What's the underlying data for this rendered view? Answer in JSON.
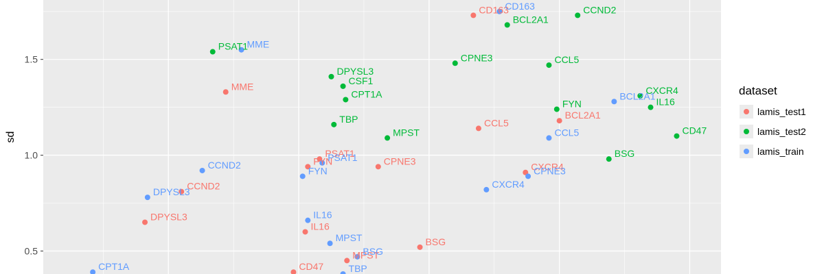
{
  "chart_data": {
    "type": "scatter",
    "ylabel": "sd",
    "xlabel": "",
    "ylim": [
      0.38,
      1.81
    ],
    "yticks": [
      0.5,
      1.0,
      1.5
    ],
    "ytick_labels": [
      "0.5",
      "1.0",
      "1.5"
    ],
    "grid": true,
    "legend": {
      "title": "dataset",
      "position": "right"
    },
    "series": [
      {
        "name": "lamis_test1",
        "color": "#F8766D",
        "points": [
          {
            "label": "CD163",
            "x": 0.67,
            "y": 1.73
          },
          {
            "label": "MME",
            "x": -0.28,
            "y": 1.33
          },
          {
            "label": "CCL5",
            "x": 0.69,
            "y": 1.14
          },
          {
            "label": "BCL2A1",
            "x": 1.0,
            "y": 1.18
          },
          {
            "label": "PSAT1",
            "x": 0.08,
            "y": 0.98
          },
          {
            "label": "FYN",
            "x": 0.035,
            "y": 0.94
          },
          {
            "label": "CPNE3",
            "x": 0.305,
            "y": 0.94
          },
          {
            "label": "CXCR4",
            "x": 0.87,
            "y": 0.91
          },
          {
            "label": "CCND2",
            "x": -0.45,
            "y": 0.81
          },
          {
            "label": "DPYSL3",
            "x": -0.59,
            "y": 0.65
          },
          {
            "label": "IL16",
            "x": 0.025,
            "y": 0.6
          },
          {
            "label": "BSG",
            "x": 0.465,
            "y": 0.52
          },
          {
            "label": "MPST",
            "x": 0.185,
            "y": 0.45
          },
          {
            "label": "CD47",
            "x": -0.02,
            "y": 0.39
          }
        ]
      },
      {
        "name": "lamis_test2",
        "color": "#00BA38",
        "points": [
          {
            "label": "CCND2",
            "x": 1.07,
            "y": 1.73
          },
          {
            "label": "BCL2A1",
            "x": 0.8,
            "y": 1.68
          },
          {
            "label": "PSAT1",
            "x": -0.33,
            "y": 1.54
          },
          {
            "label": "CPNE3",
            "x": 0.6,
            "y": 1.48
          },
          {
            "label": "CCL5",
            "x": 0.96,
            "y": 1.47
          },
          {
            "label": "DPYSL3",
            "x": 0.125,
            "y": 1.41
          },
          {
            "label": "CSF1",
            "x": 0.17,
            "y": 1.36
          },
          {
            "label": "CPT1A",
            "x": 0.18,
            "y": 1.29
          },
          {
            "label": "CXCR4",
            "x": 1.31,
            "y": 1.31
          },
          {
            "label": "IL16",
            "x": 1.35,
            "y": 1.25
          },
          {
            "label": "FYN",
            "x": 0.99,
            "y": 1.24
          },
          {
            "label": "TBP",
            "x": 0.135,
            "y": 1.16
          },
          {
            "label": "MPST",
            "x": 0.34,
            "y": 1.09
          },
          {
            "label": "CD47",
            "x": 1.45,
            "y": 1.1
          },
          {
            "label": "BSG",
            "x": 1.19,
            "y": 0.98
          }
        ]
      },
      {
        "name": "lamis_train",
        "color": "#619CFF",
        "points": [
          {
            "label": "CD163",
            "x": 0.77,
            "y": 1.75
          },
          {
            "label": "MME",
            "x": -0.22,
            "y": 1.55
          },
          {
            "label": "BCL2A1",
            "x": 1.21,
            "y": 1.28
          },
          {
            "label": "CCL5",
            "x": 0.96,
            "y": 1.09
          },
          {
            "label": "CCND2",
            "x": -0.37,
            "y": 0.92
          },
          {
            "label": "PSAT1",
            "x": 0.09,
            "y": 0.96
          },
          {
            "label": "FYN",
            "x": 0.015,
            "y": 0.89
          },
          {
            "label": "CPNE3",
            "x": 0.88,
            "y": 0.89
          },
          {
            "label": "CXCR4",
            "x": 0.72,
            "y": 0.82
          },
          {
            "label": "DPYSL3",
            "x": -0.58,
            "y": 0.78
          },
          {
            "label": "IL16",
            "x": 0.035,
            "y": 0.66
          },
          {
            "label": "MPST",
            "x": 0.12,
            "y": 0.54
          },
          {
            "label": "BSG",
            "x": 0.225,
            "y": 0.47
          },
          {
            "label": "TBP",
            "x": 0.17,
            "y": 0.38
          },
          {
            "label": "CPT1A",
            "x": -0.79,
            "y": 0.39
          }
        ]
      }
    ]
  }
}
